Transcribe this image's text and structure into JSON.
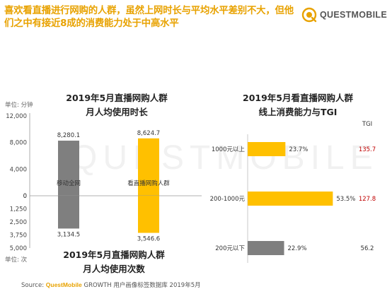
{
  "headline": "喜欢看直播进行网购的人群，虽然上网时长与平均水平差别不大，但他们之中有接近8成的消费能力处于中高水平",
  "logo": {
    "text": "QUESTMOBILE"
  },
  "watermark": "QUESTMOBILE",
  "colors": {
    "gray": "#7f7f7f",
    "yellow": "#ffc000",
    "tgi_high": "#c00000",
    "tgi_low": "#333333",
    "accent": "#e8a200"
  },
  "source": {
    "label": "Source:",
    "brand": "QuestMobile",
    "rest": "GROWTH 用户画像标签数据库 2019年5月"
  },
  "chart_data": [
    {
      "type": "bar",
      "title": "2019年5月直播网购人群",
      "subtitle": "月人均使用时长",
      "unit": "单位: 分钟",
      "categories": [
        "移动全网",
        "看直播网购人群"
      ],
      "values": [
        8280.1,
        8624.7
      ],
      "value_labels": [
        "8,280.1",
        "8,624.7"
      ],
      "ylim": [
        0,
        12000
      ],
      "yticks": [
        "12,000",
        "8,000",
        "4,000",
        "0"
      ],
      "colors": [
        "#7f7f7f",
        "#ffc000"
      ]
    },
    {
      "type": "bar",
      "title": "2019年5月直播网购人群",
      "subtitle": "月人均使用次数",
      "unit": "单位: 次",
      "categories": [
        "移动全网",
        "看直播网购人群"
      ],
      "values": [
        3134.5,
        3546.6
      ],
      "value_labels": [
        "3,134.5",
        "3,546.6"
      ],
      "ylim": [
        0,
        5000
      ],
      "yticks": [
        "0",
        "1,250",
        "2,500",
        "3,750",
        "5,000"
      ],
      "inverted": true,
      "colors": [
        "#7f7f7f",
        "#ffc000"
      ]
    },
    {
      "type": "bar",
      "orientation": "horizontal",
      "title": "2019年5月看直播网购人群",
      "subtitle": "线上消费能力与TGI",
      "categories": [
        "1000元以上",
        "200-1000元",
        "200元以下"
      ],
      "values": [
        23.7,
        53.5,
        22.9
      ],
      "value_labels": [
        "23.7%",
        "53.5%",
        "22.9%"
      ],
      "tgi_header": "TGI",
      "tgi": [
        135.7,
        127.8,
        56.2
      ],
      "tgi_labels": [
        "135.7",
        "127.8",
        "56.2"
      ],
      "colors": [
        "#ffc000",
        "#ffc000",
        "#7f7f7f"
      ]
    }
  ]
}
